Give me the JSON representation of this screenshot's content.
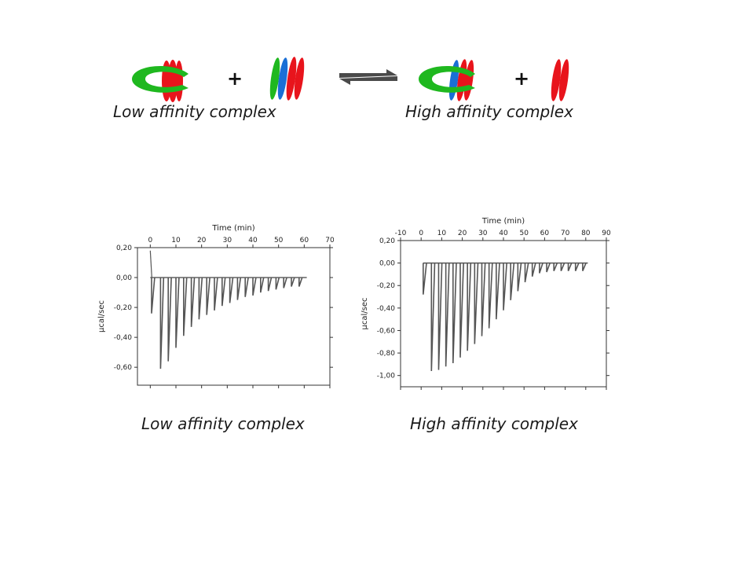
{
  "scheme": {
    "plus_symbol": "+",
    "left_caption": "Low affinity complex",
    "right_caption": "High affinity complex",
    "colors": {
      "green": "#1fb81f",
      "red": "#e8141c",
      "blue": "#1a6fd6",
      "arrow": "#4a4a4a"
    }
  },
  "chart_captions": {
    "left": "Low affinity complex",
    "right": "High affinity complex"
  },
  "chart_data": [
    {
      "type": "line",
      "title": "",
      "xlabel": "Time (min)",
      "ylabel": "µcal/sec",
      "xlim": [
        -5,
        70
      ],
      "ylim": [
        -0.72,
        0.2
      ],
      "x_ticks": [
        0,
        10,
        20,
        30,
        40,
        50,
        60,
        70
      ],
      "y_ticks": [
        0.2,
        0.0,
        -0.2,
        -0.4,
        -0.6
      ],
      "y_tick_labels": [
        "0,20",
        "0,00",
        "-0,20",
        "-0,40",
        "-0,60"
      ],
      "baseline": 0.0,
      "initial_point": [
        0,
        0.18
      ],
      "x_end": 61,
      "injections": {
        "x": [
          0.5,
          4,
          7,
          10,
          13,
          16,
          19,
          22,
          25,
          28,
          31,
          34,
          37,
          40,
          43,
          46,
          49,
          52,
          55,
          58
        ],
        "y": [
          -0.24,
          -0.61,
          -0.56,
          -0.47,
          -0.39,
          -0.33,
          -0.28,
          -0.25,
          -0.22,
          -0.19,
          -0.17,
          -0.15,
          -0.13,
          -0.12,
          -0.1,
          -0.09,
          -0.08,
          -0.07,
          -0.06,
          -0.06
        ]
      },
      "line_color": "#555555"
    },
    {
      "type": "line",
      "title": "",
      "xlabel": "Time (min)",
      "ylabel": "µcal/sec",
      "xlim": [
        -10,
        90
      ],
      "ylim": [
        -1.1,
        0.2
      ],
      "x_ticks": [
        -10,
        0,
        10,
        20,
        30,
        40,
        50,
        60,
        70,
        80,
        90
      ],
      "y_ticks": [
        0.2,
        0.0,
        -0.2,
        -0.4,
        -0.6,
        -0.8,
        -1.0
      ],
      "y_tick_labels": [
        "0,20",
        "0,00",
        "-0,20",
        "-0,40",
        "-0,60",
        "-0,80",
        "-1,00"
      ],
      "baseline": 0.0,
      "initial_point": [
        1,
        0.0
      ],
      "x_end": 81,
      "injections": {
        "x": [
          1,
          5,
          8.5,
          12,
          15.5,
          19,
          22.5,
          26,
          29.5,
          33,
          36.5,
          40,
          43.5,
          47,
          50.5,
          54,
          57.5,
          61,
          64.5,
          68,
          71.5,
          75,
          78.5
        ],
        "y": [
          -0.28,
          -0.96,
          -0.95,
          -0.92,
          -0.89,
          -0.84,
          -0.78,
          -0.72,
          -0.65,
          -0.58,
          -0.5,
          -0.42,
          -0.33,
          -0.25,
          -0.17,
          -0.12,
          -0.09,
          -0.08,
          -0.07,
          -0.07,
          -0.07,
          -0.07,
          -0.07
        ]
      },
      "line_color": "#555555"
    }
  ]
}
